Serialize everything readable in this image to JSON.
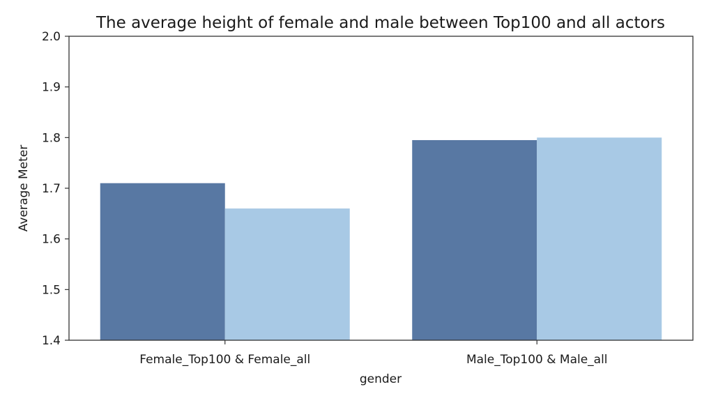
{
  "chart_data": {
    "type": "bar",
    "title": "The average height of female and male between Top100 and all actors",
    "xlabel": "gender",
    "ylabel": "Average Meter",
    "categories": [
      "Female_Top100 & Female_all",
      "Male_Top100 & Male_all"
    ],
    "series": [
      {
        "color": "#5878a3",
        "values": [
          1.71,
          1.795
        ]
      },
      {
        "color": "#a8c9e5",
        "values": [
          1.66,
          1.8
        ]
      }
    ],
    "ylim": [
      1.4,
      2.0
    ],
    "yticks": [
      "1.4",
      "1.5",
      "1.6",
      "1.7",
      "1.8",
      "1.9",
      "2.0"
    ],
    "grid": false,
    "legend": "none"
  }
}
